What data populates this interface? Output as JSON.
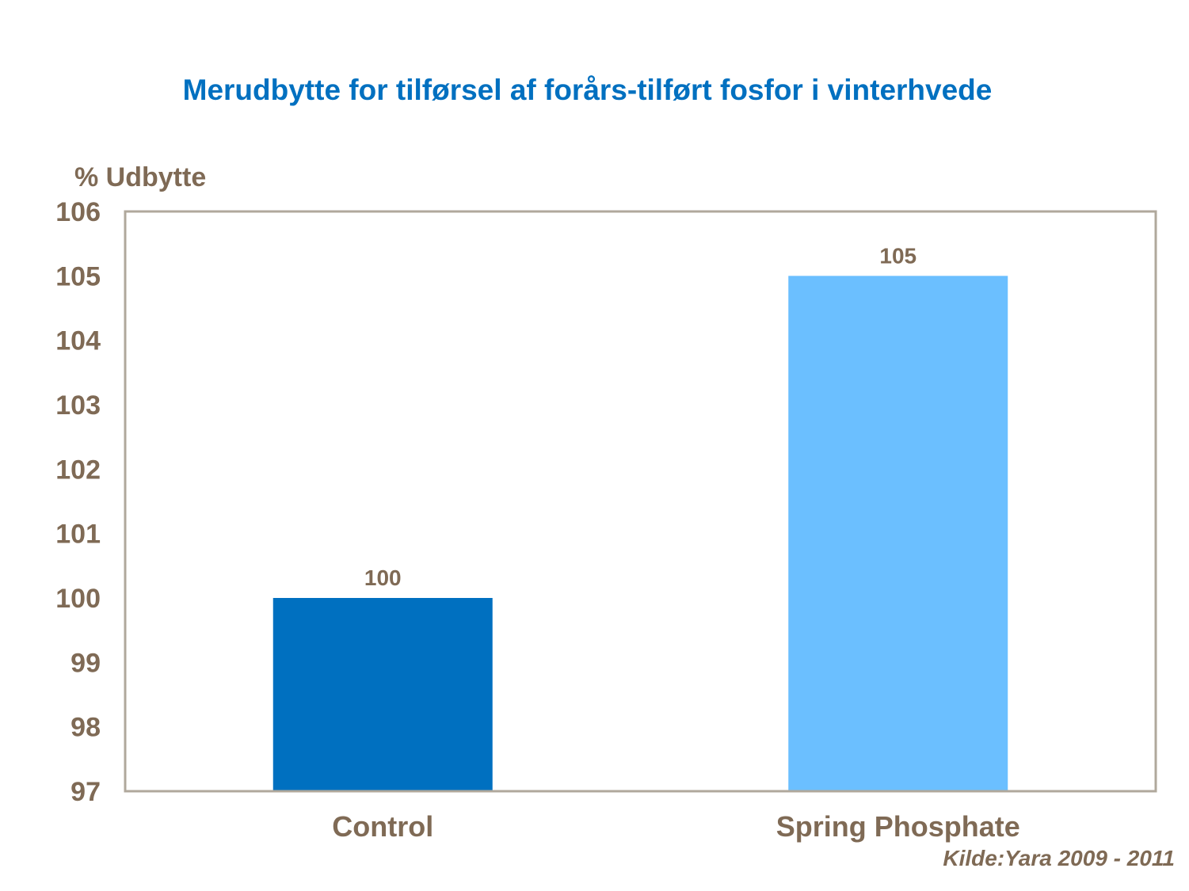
{
  "chart_data": {
    "type": "bar",
    "title": "Merudbytte for tilførsel af forårs-tilført fosfor i vinterhvede",
    "ylabel": "% Udbytte",
    "xlabel": "",
    "categories": [
      "Control",
      "Spring Phosphate"
    ],
    "values": [
      100,
      105
    ],
    "data_labels": [
      "100",
      "105"
    ],
    "colors": [
      "#0070C0",
      "#6BBFFF"
    ],
    "ylim": [
      97,
      106
    ],
    "yticks": [
      97,
      98,
      99,
      100,
      101,
      102,
      103,
      104,
      105,
      106
    ],
    "grid": false,
    "legend": "none"
  },
  "source": "Kilde:Yara 2009 - 2011",
  "colors": {
    "title": "#0070C0",
    "text": "#7F6A55",
    "frame": "#B0A89C"
  }
}
